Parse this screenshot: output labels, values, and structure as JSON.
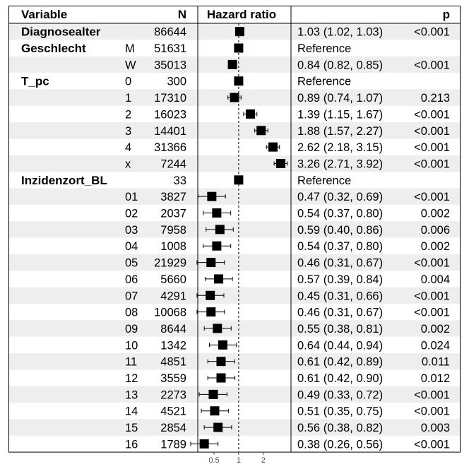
{
  "header": {
    "variable": "Variable",
    "n": "N",
    "hazard_ratio": "Hazard ratio",
    "p": "p"
  },
  "chart_data": {
    "type": "forest",
    "x_scale": "log",
    "reference_line": 1,
    "xlim": [
      0.35,
      4.1
    ],
    "x_ticks": [
      {
        "value": 0.5,
        "label": "0.5"
      },
      {
        "value": 1,
        "label": "1"
      },
      {
        "value": 2,
        "label": "2"
      }
    ],
    "rows": [
      {
        "variable": "Diagnosealter",
        "level": "",
        "n": "86644",
        "hr": 1.03,
        "lo": 1.02,
        "hi": 1.03,
        "est": "1.03 (1.02, 1.03)",
        "p": "<0.001",
        "ref": false
      },
      {
        "variable": "Geschlecht",
        "level": "M",
        "n": "51631",
        "hr": 1,
        "lo": null,
        "hi": null,
        "est": "Reference",
        "p": "",
        "ref": true
      },
      {
        "variable": "",
        "level": "W",
        "n": "35013",
        "hr": 0.84,
        "lo": 0.82,
        "hi": 0.85,
        "est": "0.84 (0.82, 0.85)",
        "p": "<0.001",
        "ref": false
      },
      {
        "variable": "T_pc",
        "level": "0",
        "n": "300",
        "hr": 1,
        "lo": null,
        "hi": null,
        "est": "Reference",
        "p": "",
        "ref": true
      },
      {
        "variable": "",
        "level": "1",
        "n": "17310",
        "hr": 0.89,
        "lo": 0.74,
        "hi": 1.07,
        "est": "0.89 (0.74, 1.07)",
        "p": "0.213",
        "ref": false
      },
      {
        "variable": "",
        "level": "2",
        "n": "16023",
        "hr": 1.39,
        "lo": 1.15,
        "hi": 1.67,
        "est": "1.39 (1.15, 1.67)",
        "p": "<0.001",
        "ref": false
      },
      {
        "variable": "",
        "level": "3",
        "n": "14401",
        "hr": 1.88,
        "lo": 1.57,
        "hi": 2.27,
        "est": "1.88 (1.57, 2.27)",
        "p": "<0.001",
        "ref": false
      },
      {
        "variable": "",
        "level": "4",
        "n": "31366",
        "hr": 2.62,
        "lo": 2.18,
        "hi": 3.15,
        "est": "2.62 (2.18, 3.15)",
        "p": "<0.001",
        "ref": false
      },
      {
        "variable": "",
        "level": "x",
        "n": "7244",
        "hr": 3.26,
        "lo": 2.71,
        "hi": 3.92,
        "est": "3.26 (2.71, 3.92)",
        "p": "<0.001",
        "ref": false
      },
      {
        "variable": "Inzidenzort_BL",
        "level": "",
        "n": "33",
        "hr": 1,
        "lo": null,
        "hi": null,
        "est": "Reference",
        "p": "",
        "ref": true
      },
      {
        "variable": "",
        "level": "01",
        "n": "3827",
        "hr": 0.47,
        "lo": 0.32,
        "hi": 0.69,
        "est": "0.47 (0.32, 0.69)",
        "p": "<0.001",
        "ref": false
      },
      {
        "variable": "",
        "level": "02",
        "n": "2037",
        "hr": 0.54,
        "lo": 0.37,
        "hi": 0.8,
        "est": "0.54 (0.37, 0.80)",
        "p": "0.002",
        "ref": false
      },
      {
        "variable": "",
        "level": "03",
        "n": "7958",
        "hr": 0.59,
        "lo": 0.4,
        "hi": 0.86,
        "est": "0.59 (0.40, 0.86)",
        "p": "0.006",
        "ref": false
      },
      {
        "variable": "",
        "level": "04",
        "n": "1008",
        "hr": 0.54,
        "lo": 0.37,
        "hi": 0.8,
        "est": "0.54 (0.37, 0.80)",
        "p": "0.002",
        "ref": false
      },
      {
        "variable": "",
        "level": "05",
        "n": "21929",
        "hr": 0.46,
        "lo": 0.31,
        "hi": 0.67,
        "est": "0.46 (0.31, 0.67)",
        "p": "<0.001",
        "ref": false
      },
      {
        "variable": "",
        "level": "06",
        "n": "5660",
        "hr": 0.57,
        "lo": 0.39,
        "hi": 0.84,
        "est": "0.57 (0.39, 0.84)",
        "p": "0.004",
        "ref": false
      },
      {
        "variable": "",
        "level": "07",
        "n": "4291",
        "hr": 0.45,
        "lo": 0.31,
        "hi": 0.66,
        "est": "0.45 (0.31, 0.66)",
        "p": "<0.001",
        "ref": false
      },
      {
        "variable": "",
        "level": "08",
        "n": "10068",
        "hr": 0.46,
        "lo": 0.31,
        "hi": 0.67,
        "est": "0.46 (0.31, 0.67)",
        "p": "<0.001",
        "ref": false
      },
      {
        "variable": "",
        "level": "09",
        "n": "8644",
        "hr": 0.55,
        "lo": 0.38,
        "hi": 0.81,
        "est": "0.55 (0.38, 0.81)",
        "p": "0.002",
        "ref": false
      },
      {
        "variable": "",
        "level": "10",
        "n": "1342",
        "hr": 0.64,
        "lo": 0.44,
        "hi": 0.94,
        "est": "0.64 (0.44, 0.94)",
        "p": "0.024",
        "ref": false
      },
      {
        "variable": "",
        "level": "11",
        "n": "4851",
        "hr": 0.61,
        "lo": 0.42,
        "hi": 0.89,
        "est": "0.61 (0.42, 0.89)",
        "p": "0.011",
        "ref": false
      },
      {
        "variable": "",
        "level": "12",
        "n": "3559",
        "hr": 0.61,
        "lo": 0.42,
        "hi": 0.9,
        "est": "0.61 (0.42, 0.90)",
        "p": "0.012",
        "ref": false
      },
      {
        "variable": "",
        "level": "13",
        "n": "2273",
        "hr": 0.49,
        "lo": 0.33,
        "hi": 0.72,
        "est": "0.49 (0.33, 0.72)",
        "p": "<0.001",
        "ref": false
      },
      {
        "variable": "",
        "level": "14",
        "n": "4521",
        "hr": 0.51,
        "lo": 0.35,
        "hi": 0.75,
        "est": "0.51 (0.35, 0.75)",
        "p": "<0.001",
        "ref": false
      },
      {
        "variable": "",
        "level": "15",
        "n": "2854",
        "hr": 0.56,
        "lo": 0.38,
        "hi": 0.82,
        "est": "0.56 (0.38, 0.82)",
        "p": "0.003",
        "ref": false
      },
      {
        "variable": "",
        "level": "16",
        "n": "1789",
        "hr": 0.38,
        "lo": 0.26,
        "hi": 0.56,
        "est": "0.38 (0.26, 0.56)",
        "p": "<0.001",
        "ref": false
      }
    ]
  },
  "colors": {
    "band": "#eeeeee",
    "border": "#000000",
    "marker": "#000000",
    "tick_text": "#4d4d4d"
  }
}
